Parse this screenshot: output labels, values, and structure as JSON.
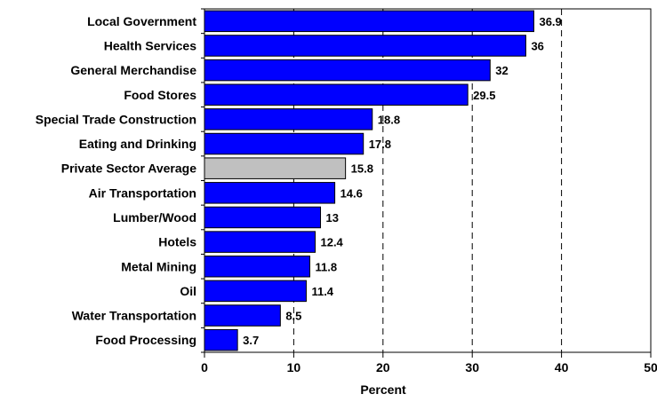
{
  "chart_data": {
    "type": "bar",
    "orientation": "horizontal",
    "categories": [
      "Local Government",
      "Health Services",
      "General Merchandise",
      "Food Stores",
      "Special Trade Construction",
      "Eating and Drinking",
      "Private Sector Average",
      "Air Transportation",
      "Lumber/Wood",
      "Hotels",
      "Metal Mining",
      "Oil",
      "Water Transportation",
      "Food Processing"
    ],
    "values": [
      36.9,
      36,
      32,
      29.5,
      18.8,
      17.8,
      15.8,
      14.6,
      13,
      12.4,
      11.8,
      11.4,
      8.5,
      3.7
    ],
    "data_labels": [
      "36.9",
      "36",
      "32",
      "29.5",
      "18.8",
      "17.8",
      "15.8",
      "14.6",
      "13",
      "12.4",
      "11.8",
      "11.4",
      "8.5",
      "3.7"
    ],
    "title": "",
    "xlabel": "Percent",
    "ylabel": "",
    "xlim": [
      0,
      50
    ],
    "xticks": [
      0,
      10,
      20,
      30,
      40,
      50
    ],
    "xtick_labels": [
      "0",
      "10",
      "20",
      "30",
      "40",
      "50"
    ],
    "grid": "vertical dashed at 10, 20, 30, 40",
    "legend": "none",
    "colors": {
      "bar": "#0000ff",
      "highlight_bar": "#c0c0c0",
      "highlight_category": "Private Sector Average",
      "bar_outline": "#000000",
      "grid": "#000000"
    }
  }
}
